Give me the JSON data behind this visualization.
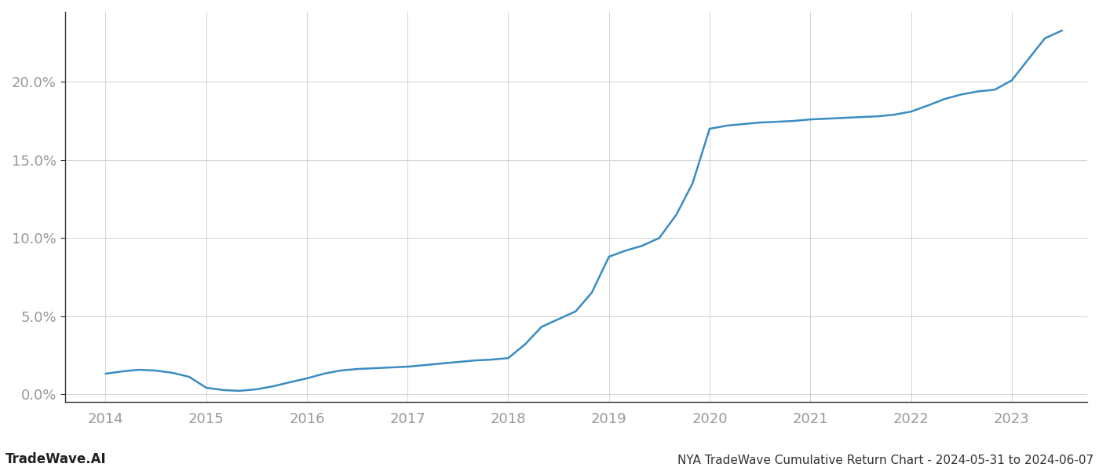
{
  "title": "NYA TradeWave Cumulative Return Chart - 2024-05-31 to 2024-06-07",
  "watermark": "TradeWave.AI",
  "line_color": "#3a8cc1",
  "line_width": 1.8,
  "background_color": "#ffffff",
  "grid_color": "#cccccc",
  "x_years": [
    2014,
    2015,
    2016,
    2017,
    2018,
    2019,
    2020,
    2021,
    2022,
    2023
  ],
  "x_data": [
    2014.0,
    2014.17,
    2014.33,
    2014.5,
    2014.67,
    2014.83,
    2015.0,
    2015.17,
    2015.33,
    2015.5,
    2015.67,
    2015.83,
    2016.0,
    2016.17,
    2016.33,
    2016.5,
    2016.67,
    2016.83,
    2017.0,
    2017.17,
    2017.33,
    2017.5,
    2017.67,
    2017.83,
    2018.0,
    2018.17,
    2018.33,
    2018.5,
    2018.67,
    2018.83,
    2019.0,
    2019.17,
    2019.33,
    2019.5,
    2019.67,
    2019.83,
    2020.0,
    2020.17,
    2020.33,
    2020.5,
    2020.67,
    2020.83,
    2021.0,
    2021.17,
    2021.33,
    2021.5,
    2021.67,
    2021.83,
    2022.0,
    2022.17,
    2022.33,
    2022.5,
    2022.67,
    2022.83,
    2023.0,
    2023.17,
    2023.33,
    2023.5
  ],
  "y_data": [
    1.3,
    1.45,
    1.55,
    1.5,
    1.35,
    1.1,
    0.4,
    0.25,
    0.2,
    0.3,
    0.5,
    0.75,
    1.0,
    1.3,
    1.5,
    1.6,
    1.65,
    1.7,
    1.75,
    1.85,
    1.95,
    2.05,
    2.15,
    2.2,
    2.3,
    3.2,
    4.3,
    4.8,
    5.3,
    6.5,
    8.8,
    9.2,
    9.5,
    10.0,
    11.5,
    13.5,
    17.0,
    17.2,
    17.3,
    17.4,
    17.45,
    17.5,
    17.6,
    17.65,
    17.7,
    17.75,
    17.8,
    17.9,
    18.1,
    18.5,
    18.9,
    19.2,
    19.4,
    19.5,
    20.1,
    21.5,
    22.8,
    23.3
  ],
  "ylim": [
    -0.5,
    24.5
  ],
  "xlim": [
    2013.6,
    2023.75
  ],
  "yticks": [
    0.0,
    5.0,
    10.0,
    15.0,
    20.0
  ],
  "ytick_labels": [
    "0.0%",
    "5.0%",
    "10.0%",
    "15.0%",
    "20.0%"
  ],
  "tick_color": "#999999",
  "tick_fontsize": 13,
  "watermark_fontsize": 12,
  "title_fontsize": 11,
  "spine_color": "#333333"
}
